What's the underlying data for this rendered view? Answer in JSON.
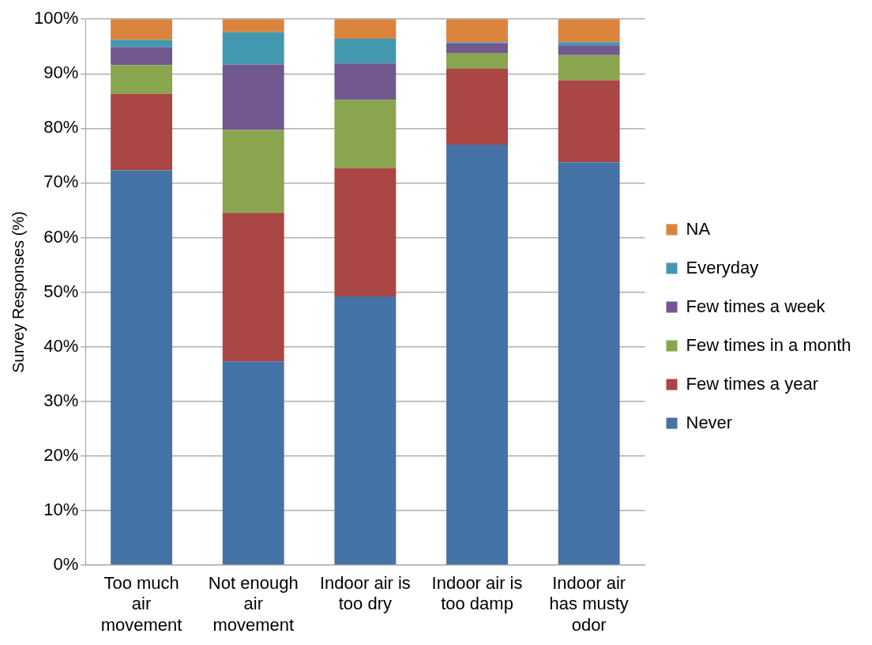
{
  "chart_data": {
    "type": "bar",
    "stacked": true,
    "ylabel": "Survey Responses (%)",
    "categories": [
      "Too much air movement",
      "Not enough air movement",
      "Indoor air is too dry",
      "Indoor air is too damp",
      "Indoor air has musty odor"
    ],
    "series": [
      {
        "name": "Never",
        "color": "#4572a7",
        "values": [
          72.3,
          37.3,
          49.2,
          77.0,
          73.8
        ]
      },
      {
        "name": "Few times a year",
        "color": "#aa4643",
        "values": [
          14.0,
          27.2,
          23.5,
          13.9,
          15.0
        ]
      },
      {
        "name": "Few times in a month",
        "color": "#89a54e",
        "values": [
          5.3,
          15.2,
          12.5,
          2.9,
          4.6
        ]
      },
      {
        "name": "Few times a week",
        "color": "#71588f",
        "values": [
          3.3,
          12.0,
          6.7,
          1.8,
          1.8
        ]
      },
      {
        "name": "Everyday",
        "color": "#4198af",
        "values": [
          1.3,
          5.9,
          4.5,
          0.2,
          0.6
        ]
      },
      {
        "name": "NA",
        "color": "#db843d",
        "values": [
          3.8,
          2.4,
          3.6,
          4.2,
          4.2
        ]
      }
    ],
    "ylim": [
      0,
      100
    ],
    "yticks": [
      {
        "value": 0,
        "label": "0%"
      },
      {
        "value": 10,
        "label": "10%"
      },
      {
        "value": 20,
        "label": "20%"
      },
      {
        "value": 30,
        "label": "30%"
      },
      {
        "value": 40,
        "label": "40%"
      },
      {
        "value": 50,
        "label": "50%"
      },
      {
        "value": 60,
        "label": "60%"
      },
      {
        "value": 70,
        "label": "70%"
      },
      {
        "value": 80,
        "label": "80%"
      },
      {
        "value": 90,
        "label": "90%"
      },
      {
        "value": 100,
        "label": "100%"
      }
    ],
    "grid": "y",
    "legend": "right"
  }
}
